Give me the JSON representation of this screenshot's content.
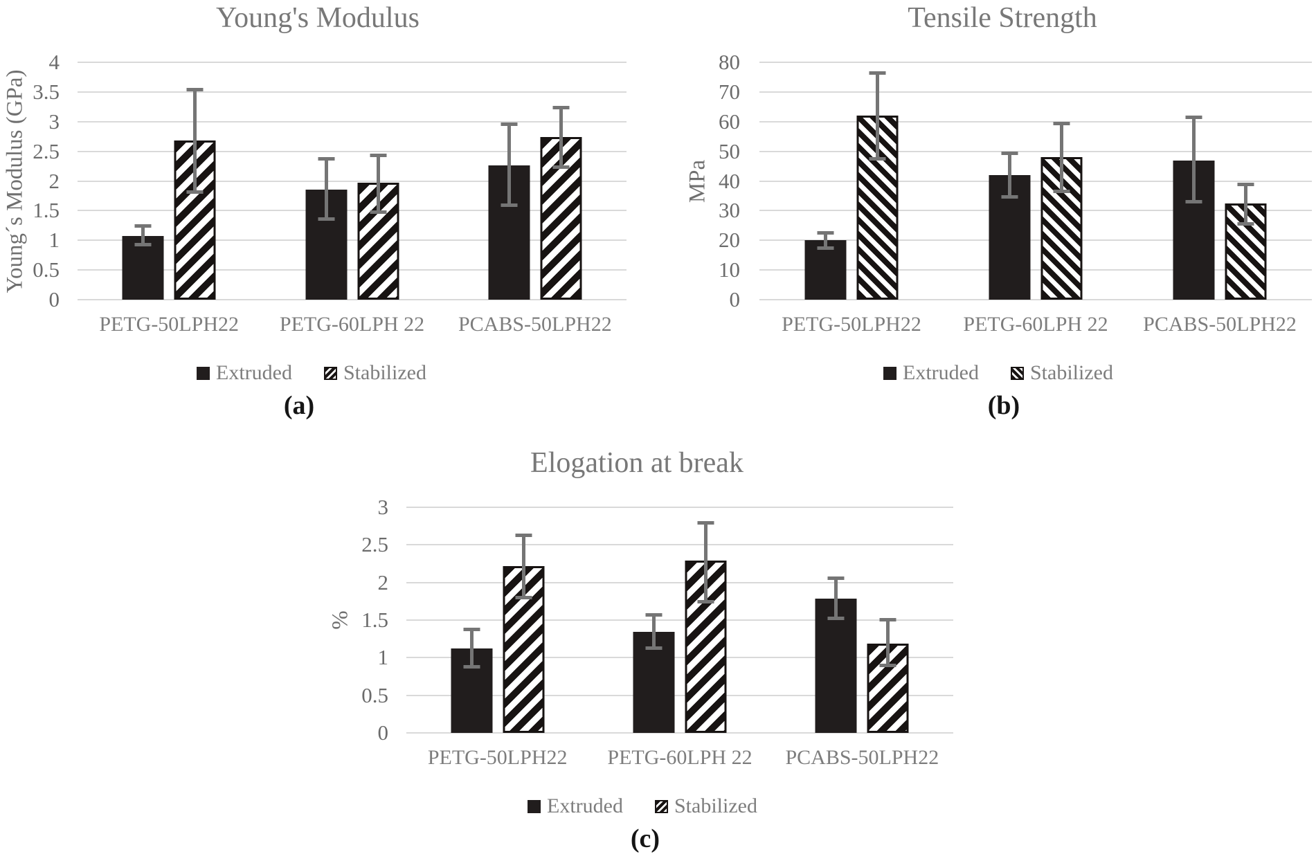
{
  "figure_legend_note": "Two-series grouped bar charts with error bars",
  "chart_data": [
    {
      "key": "a",
      "type": "bar",
      "title": "Young's Modulus",
      "caption": "(a)",
      "ylabel": "Young´s Modulus (GPa)",
      "xlabel": "",
      "ylim": [
        0,
        4
      ],
      "yticks": [
        "0",
        "0.5",
        "1",
        "1.5",
        "2",
        "2.5",
        "3",
        "3.5",
        "4"
      ],
      "grid": true,
      "legend_position": "bottom",
      "hatch_direction": "forward-slash",
      "categories": [
        "PETG-50LPH22",
        "PETG-60LPH 22",
        "PCABS-50LPH22"
      ],
      "series": [
        {
          "name": "Extruded",
          "pattern": "solid",
          "values": [
            1.07,
            1.86,
            2.26
          ],
          "err_lo": [
            0.9,
            1.33,
            1.56
          ],
          "err_hi": [
            1.27,
            2.4,
            2.98
          ]
        },
        {
          "name": "Stabilized",
          "pattern": "diagonal-hatch",
          "values": [
            2.68,
            1.97,
            2.74
          ],
          "err_lo": [
            1.78,
            1.45,
            2.2
          ],
          "err_hi": [
            3.57,
            2.46,
            3.27
          ]
        }
      ]
    },
    {
      "key": "b",
      "type": "bar",
      "title": "Tensile Strength",
      "caption": "(b)",
      "ylabel": "MPa",
      "xlabel": "",
      "ylim": [
        0,
        80
      ],
      "yticks": [
        "0",
        "10",
        "20",
        "30",
        "40",
        "50",
        "60",
        "70",
        "80"
      ],
      "grid": true,
      "legend_position": "bottom",
      "hatch_direction": "back-slash",
      "categories": [
        "PETG-50LPH22",
        "PETG-60LPH 22",
        "PCABS-50LPH22"
      ],
      "series": [
        {
          "name": "Extruded",
          "pattern": "solid",
          "values": [
            20,
            42,
            47
          ],
          "err_lo": [
            16.7,
            34,
            32.5
          ],
          "err_hi": [
            23.2,
            50,
            62
          ]
        },
        {
          "name": "Stabilized",
          "pattern": "diagonal-hatch",
          "values": [
            62,
            48,
            32.5
          ],
          "err_lo": [
            47,
            36,
            25
          ],
          "err_hi": [
            77,
            60,
            39.5
          ]
        }
      ]
    },
    {
      "key": "c",
      "type": "bar",
      "title": "Elogation at break",
      "caption": "(c)",
      "ylabel": "%",
      "xlabel": "",
      "ylim": [
        0,
        3
      ],
      "yticks": [
        "0",
        "0.5",
        "1",
        "1.5",
        "2",
        "2.5",
        "3"
      ],
      "grid": true,
      "legend_position": "bottom",
      "hatch_direction": "forward-slash",
      "categories": [
        "PETG-50LPH22",
        "PETG-60LPH 22",
        "PCABS-50LPH22"
      ],
      "series": [
        {
          "name": "Extruded",
          "pattern": "solid",
          "values": [
            1.12,
            1.34,
            1.79
          ],
          "err_lo": [
            0.86,
            1.1,
            1.5
          ],
          "err_hi": [
            1.4,
            1.59,
            2.08
          ]
        },
        {
          "name": "Stabilized",
          "pattern": "diagonal-hatch",
          "values": [
            2.22,
            2.29,
            1.19
          ],
          "err_lo": [
            1.78,
            1.72,
            0.87
          ],
          "err_hi": [
            2.65,
            2.82,
            1.53
          ]
        }
      ]
    }
  ]
}
